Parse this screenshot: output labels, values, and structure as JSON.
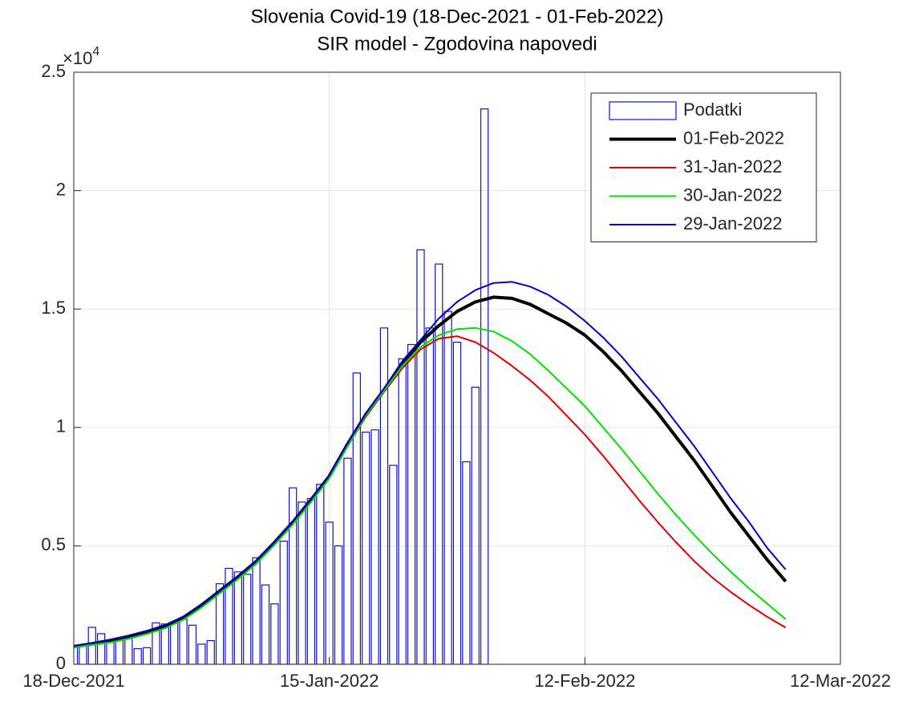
{
  "chart_data": {
    "type": "bar-line",
    "title": "Slovenia Covid-19 (18-Dec-2021 - 01-Feb-2022)",
    "subtitle": "SIR model - Zgodovina napovedi",
    "y_exponent": {
      "base": "×10",
      "power": "4"
    },
    "xlim": [
      "18-Dec-2021",
      "12-Mar-2022"
    ],
    "xticks": [
      "18-Dec-2021",
      "15-Jan-2022",
      "12-Feb-2022",
      "12-Mar-2022"
    ],
    "ylim": [
      0,
      25000
    ],
    "yticks": [
      {
        "value": 0,
        "label": "0"
      },
      {
        "value": 5000,
        "label": "0.5"
      },
      {
        "value": 10000,
        "label": "1"
      },
      {
        "value": 15000,
        "label": "1.5"
      },
      {
        "value": 20000,
        "label": "2"
      },
      {
        "value": 25000,
        "label": "2.5"
      }
    ],
    "grid": true,
    "legend": "upper right",
    "x": [
      "18-Dec-2021",
      "20-Dec-2021",
      "22-Dec-2021",
      "24-Dec-2021",
      "26-Dec-2021",
      "28-Dec-2021",
      "30-Dec-2021",
      "01-Jan-2022",
      "03-Jan-2022",
      "05-Jan-2022",
      "07-Jan-2022",
      "09-Jan-2022",
      "11-Jan-2022",
      "13-Jan-2022",
      "15-Jan-2022",
      "17-Jan-2022",
      "19-Jan-2022",
      "21-Jan-2022",
      "23-Jan-2022",
      "25-Jan-2022",
      "27-Jan-2022",
      "29-Jan-2022",
      "31-Jan-2022",
      "02-Feb-2022",
      "04-Feb-2022",
      "06-Feb-2022",
      "08-Feb-2022",
      "10-Feb-2022",
      "12-Feb-2022",
      "14-Feb-2022",
      "16-Feb-2022",
      "18-Feb-2022",
      "20-Feb-2022",
      "22-Feb-2022",
      "24-Feb-2022",
      "26-Feb-2022",
      "28-Feb-2022",
      "02-Mar-2022",
      "04-Mar-2022",
      "06-Mar-2022"
    ],
    "series": [
      {
        "name": "Podatki",
        "type": "bar",
        "color": "#1010d0",
        "x": [
          "18-Dec-2021",
          "19-Dec-2021",
          "20-Dec-2021",
          "21-Dec-2021",
          "22-Dec-2021",
          "23-Dec-2021",
          "24-Dec-2021",
          "25-Dec-2021",
          "26-Dec-2021",
          "27-Dec-2021",
          "28-Dec-2021",
          "29-Dec-2021",
          "30-Dec-2021",
          "31-Dec-2021",
          "01-Jan-2022",
          "02-Jan-2022",
          "03-Jan-2022",
          "04-Jan-2022",
          "05-Jan-2022",
          "06-Jan-2022",
          "07-Jan-2022",
          "08-Jan-2022",
          "09-Jan-2022",
          "10-Jan-2022",
          "11-Jan-2022",
          "12-Jan-2022",
          "13-Jan-2022",
          "14-Jan-2022",
          "15-Jan-2022",
          "16-Jan-2022",
          "17-Jan-2022",
          "18-Jan-2022",
          "19-Jan-2022",
          "20-Jan-2022",
          "21-Jan-2022",
          "22-Jan-2022",
          "23-Jan-2022",
          "24-Jan-2022",
          "25-Jan-2022",
          "26-Jan-2022",
          "27-Jan-2022",
          "28-Jan-2022",
          "29-Jan-2022",
          "30-Jan-2022",
          "31-Jan-2022",
          "01-Feb-2022"
        ],
        "values": [
          700,
          800,
          1560,
          1290,
          1000,
          1000,
          1100,
          660,
          700,
          1750,
          1700,
          1750,
          1900,
          1650,
          850,
          1000,
          3400,
          4050,
          3900,
          3800,
          4500,
          3350,
          2550,
          5200,
          7450,
          6850,
          7000,
          7600,
          6000,
          5000,
          8700,
          12300,
          9800,
          9900,
          14200,
          8400,
          12900,
          13500,
          17500,
          14200,
          16900,
          14900,
          13600,
          8550,
          11700,
          23450
        ]
      },
      {
        "name": "01-Feb-2022",
        "type": "line",
        "color": "#000000",
        "line_width": 4,
        "values": [
          750,
          870,
          1010,
          1180,
          1380,
          1620,
          1980,
          2500,
          3100,
          3700,
          4350,
          5150,
          6000,
          6950,
          7950,
          9300,
          10550,
          11600,
          12700,
          13600,
          14300,
          14900,
          15300,
          15500,
          15450,
          15200,
          14800,
          14400,
          13900,
          13200,
          12400,
          11500,
          10600,
          9600,
          8600,
          7500,
          6400,
          5400,
          4400,
          3500
        ]
      },
      {
        "name": "31-Jan-2022",
        "type": "line",
        "color": "#e00000",
        "line_width": 2,
        "values": [
          700,
          820,
          920,
          1080,
          1280,
          1520,
          1880,
          2400,
          3000,
          3600,
          4250,
          5050,
          5900,
          6850,
          7850,
          9200,
          10450,
          11500,
          12500,
          13300,
          13750,
          13850,
          13600,
          13150,
          12600,
          12000,
          11300,
          10500,
          9700,
          8800,
          7850,
          6900,
          6000,
          5150,
          4350,
          3650,
          3050,
          2500,
          2000,
          1550
        ]
      },
      {
        "name": "30-Jan-2022",
        "type": "line",
        "color": "#00e000",
        "line_width": 2,
        "values": [
          700,
          820,
          920,
          1080,
          1280,
          1520,
          1880,
          2400,
          3000,
          3600,
          4250,
          5050,
          5900,
          6850,
          7850,
          9200,
          10500,
          11550,
          12600,
          13400,
          13900,
          14150,
          14200,
          14050,
          13650,
          13100,
          12400,
          11650,
          10900,
          10000,
          9100,
          8150,
          7200,
          6300,
          5450,
          4650,
          3900,
          3200,
          2550,
          1900
        ]
      },
      {
        "name": "29-Jan-2022",
        "type": "line",
        "color": "#0000c8",
        "line_width": 2,
        "values": [
          780,
          900,
          1040,
          1210,
          1410,
          1650,
          2010,
          2530,
          3130,
          3730,
          4380,
          5180,
          6030,
          6980,
          7980,
          9330,
          10580,
          11650,
          12800,
          13700,
          14600,
          15300,
          15800,
          16100,
          16150,
          15950,
          15600,
          15100,
          14500,
          13800,
          13000,
          12100,
          11200,
          10200,
          9200,
          8100,
          7000,
          6000,
          4900,
          4000
        ]
      }
    ]
  }
}
